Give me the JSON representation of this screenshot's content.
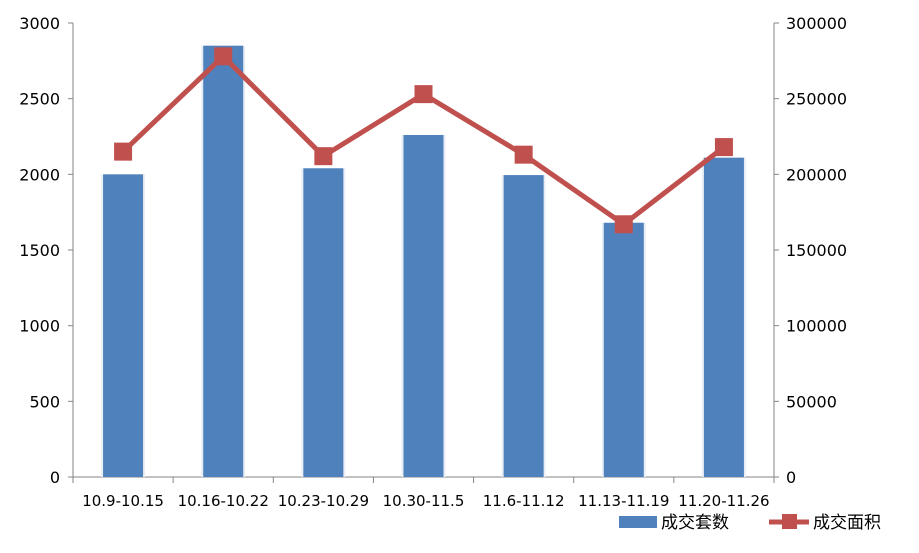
{
  "chart_data": {
    "type": "bar",
    "categories": [
      "10.9-10.15",
      "10.16-10.22",
      "10.23-10.29",
      "10.30-11.5",
      "11.6-11.12",
      "11.13-11.19",
      "11.20-11.26"
    ],
    "series": [
      {
        "name": "成交套数",
        "type": "bar",
        "axis": "left",
        "color": "#4F81BD",
        "values": [
          2000,
          2850,
          2040,
          2260,
          1995,
          1680,
          2110
        ]
      },
      {
        "name": "成交面积",
        "type": "line",
        "axis": "right",
        "color": "#C0504D",
        "marker": "square",
        "values": [
          215000,
          278000,
          212000,
          253000,
          213000,
          167000,
          218000
        ]
      }
    ],
    "y_left": {
      "range": [
        0,
        3000
      ],
      "ticks": [
        "0",
        "500",
        "1000",
        "1500",
        "2000",
        "2500",
        "3000"
      ]
    },
    "y_right": {
      "range": [
        0,
        300000
      ],
      "ticks": [
        "0",
        "50000",
        "100000",
        "150000",
        "200000",
        "250000",
        "300000"
      ]
    },
    "grid": false,
    "legend": "bottom-right"
  }
}
